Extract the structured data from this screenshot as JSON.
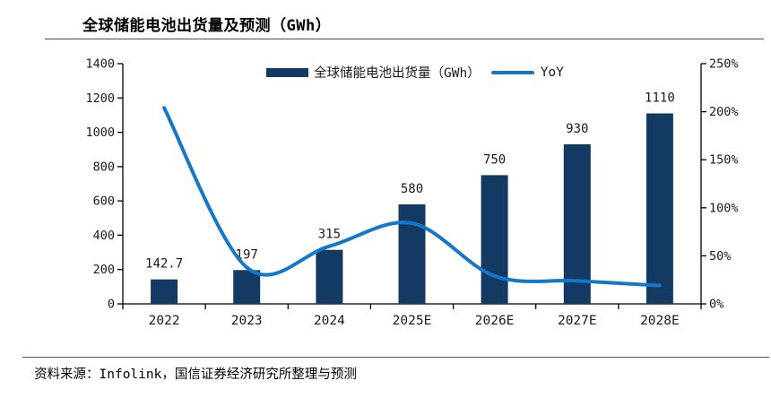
{
  "header": {
    "title": "全球储能电池出货量及预测（GWh）"
  },
  "legend": {
    "bar_label": "全球储能电池出货量（GWh）",
    "line_label": "YoY"
  },
  "footer": {
    "source": "资料来源：Infolink，国信证券经济研究所整理与预测"
  },
  "colors": {
    "bar": "#133A63",
    "line": "#1477C8",
    "axis": "#000000",
    "label_text": "#1a1a1a"
  },
  "chart_data": {
    "type": "bar",
    "title": "全球储能电池出货量及预测（GWh）",
    "categories": [
      "2022",
      "2023",
      "2024",
      "2025E",
      "2026E",
      "2027E",
      "2028E"
    ],
    "series": [
      {
        "name": "全球储能电池出货量（GWh）",
        "type": "bar",
        "axis": "left",
        "values": [
          142.7,
          197,
          315,
          580,
          750,
          930,
          1110
        ],
        "data_labels": [
          "142.7",
          "197",
          "315",
          "580",
          "750",
          "930",
          "1110"
        ]
      },
      {
        "name": "YoY",
        "type": "line",
        "axis": "right",
        "values_pct": [
          204,
          38,
          60,
          84,
          29,
          24,
          19
        ]
      }
    ],
    "left_axis": {
      "min": 0,
      "max": 1400,
      "step": 200,
      "ticks": [
        "0",
        "200",
        "400",
        "600",
        "800",
        "1000",
        "1200",
        "1400"
      ]
    },
    "right_axis": {
      "min": 0,
      "max": 250,
      "step": 50,
      "ticks": [
        "0%",
        "50%",
        "100%",
        "150%",
        "200%",
        "250%"
      ]
    },
    "xlabel": "",
    "ylabel": "",
    "grid": false,
    "legend_position": "top"
  }
}
